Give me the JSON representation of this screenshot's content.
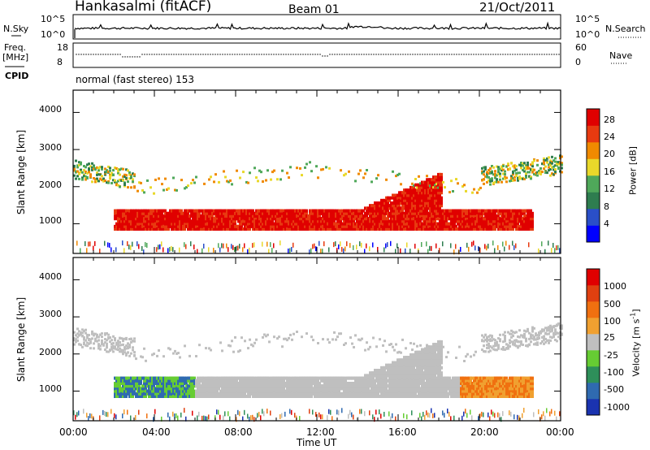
{
  "header": {
    "station": "Hankasalmi (fitACF)",
    "beam": "Beam 01",
    "date": "21/Oct/2011"
  },
  "status_panel": {
    "nsky_label": "N.Sky",
    "nsky_ticks": [
      "10^5",
      "10^0"
    ],
    "nsearch_label": "N.Search",
    "nsearch_ticks": [
      "10^5",
      "10^0"
    ],
    "freq_label": "Freq.",
    "freq_unit": "[MHz]",
    "freq_ticks": [
      "18",
      "8"
    ],
    "nave_label": "Nave",
    "nave_ticks": [
      "60",
      "0"
    ],
    "cpid_label": "CPID",
    "cpid_text": "normal (fast stereo) 153"
  },
  "chart_data": [
    {
      "type": "heatmap",
      "panel": "power",
      "ylabel": "Slant Range [km]",
      "ylim": [
        200,
        4600
      ],
      "yticks": [
        "4000",
        "3000",
        "2000",
        "1000"
      ],
      "xlim_hours": [
        0,
        24
      ],
      "colorbar_label": "Power [dB]",
      "colorbar_ticks": [
        "28",
        "24",
        "20",
        "16",
        "12",
        "8",
        "4"
      ],
      "colors": [
        "#0000ff",
        "#2a4fc8",
        "#2e7d4f",
        "#4fa85a",
        "#e9d82a",
        "#f08a00",
        "#e83a10",
        "#e00000"
      ]
    },
    {
      "type": "heatmap",
      "panel": "velocity",
      "ylabel": "Slant Range [km]",
      "ylim": [
        200,
        4600
      ],
      "yticks": [
        "4000",
        "3000",
        "2000",
        "1000"
      ],
      "xlim_hours": [
        0,
        24
      ],
      "colorbar_label": "Velocity [m s",
      "colorbar_label_sup": "-1",
      "colorbar_label_end": "]",
      "colorbar_ticks": [
        "1000",
        "500",
        "100",
        "25",
        "-25",
        "-100",
        "-500",
        "-1000"
      ],
      "colors": [
        "#1a33b0",
        "#2f6ab0",
        "#2e8f5a",
        "#66cc33",
        "#bfbfbf",
        "#f0a030",
        "#f07010",
        "#e04010",
        "#e00000"
      ]
    }
  ],
  "x_axis": {
    "label": "Time UT",
    "ticks": [
      "00:00",
      "04:00",
      "08:00",
      "12:00",
      "16:00",
      "20:00",
      "00:00"
    ]
  }
}
